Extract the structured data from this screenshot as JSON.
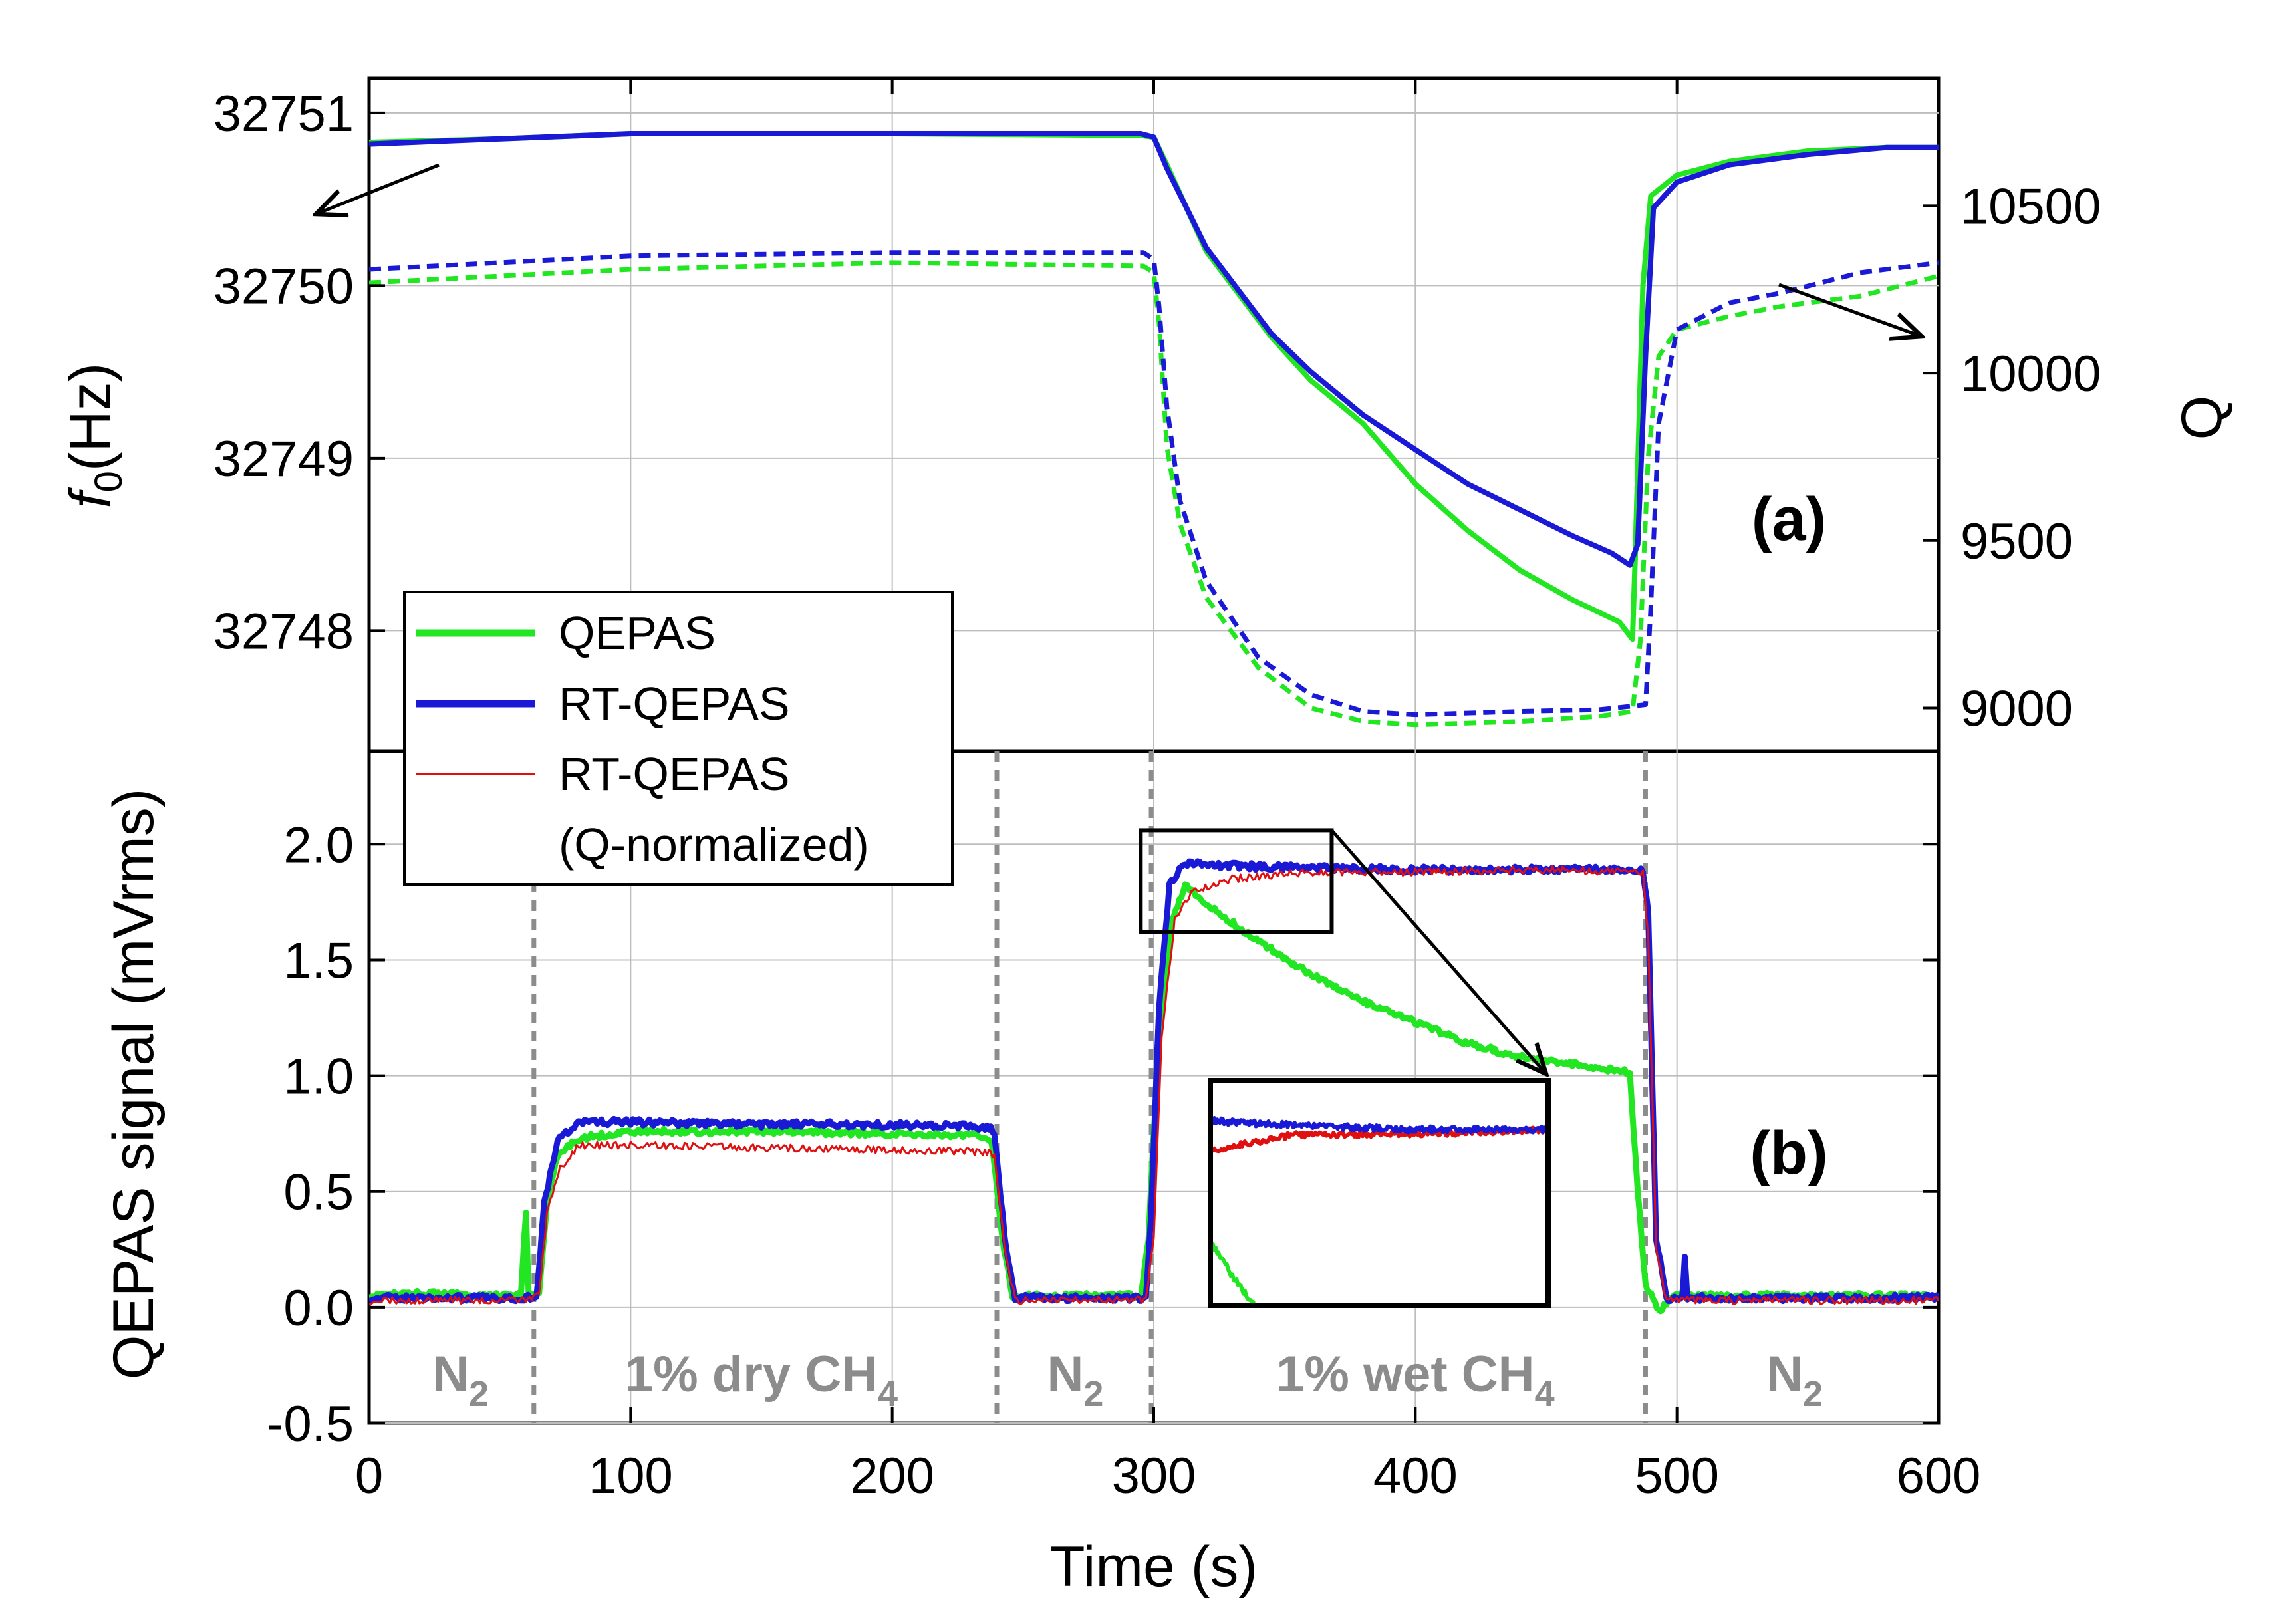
{
  "chart_data": {
    "type": "line",
    "colors": {
      "qepas": "#22e622",
      "rt_qepas": "#1a1ad6",
      "rt_qepas_qnorm": "#e01010",
      "phase_marker": "#8c8c8c"
    },
    "x": {
      "label": "Time (s)",
      "range": [
        0,
        600
      ],
      "ticks": [
        "0",
        "100",
        "200",
        "300",
        "400",
        "500",
        "600"
      ]
    },
    "panel_a": {
      "label": "(a)",
      "left_axis": {
        "label_main": "f",
        "label_sub": "0",
        "label_unit": "(Hz)",
        "range": [
          32747.3,
          32751.2
        ],
        "ticks": [
          "32748",
          "32749",
          "32750",
          "32751"
        ]
      },
      "right_axis": {
        "label": "Q",
        "range": [
          8870,
          10880
        ],
        "ticks": [
          "9000",
          "9500",
          "10000",
          "10500"
        ]
      },
      "series": [
        {
          "name": "QEPAS f0",
          "axis": "left",
          "style": "solid",
          "color_key": "qepas",
          "points": [
            [
              0,
              32750.83
            ],
            [
              50,
              32750.85
            ],
            [
              100,
              32750.88
            ],
            [
              200,
              32750.88
            ],
            [
              295,
              32750.87
            ],
            [
              300,
              32750.86
            ],
            [
              305,
              32750.7
            ],
            [
              320,
              32750.2
            ],
            [
              345,
              32749.7
            ],
            [
              360,
              32749.45
            ],
            [
              380,
              32749.2
            ],
            [
              400,
              32748.85
            ],
            [
              420,
              32748.58
            ],
            [
              440,
              32748.35
            ],
            [
              460,
              32748.18
            ],
            [
              478,
              32748.05
            ],
            [
              483,
              32747.95
            ],
            [
              484,
              32748.4
            ],
            [
              487,
              32750.0
            ],
            [
              490,
              32750.52
            ],
            [
              500,
              32750.64
            ],
            [
              520,
              32750.72
            ],
            [
              550,
              32750.78
            ],
            [
              580,
              32750.8
            ],
            [
              600,
              32750.8
            ]
          ]
        },
        {
          "name": "RT-QEPAS f0",
          "axis": "left",
          "style": "solid",
          "color_key": "rt_qepas",
          "points": [
            [
              0,
              32750.82
            ],
            [
              50,
              32750.85
            ],
            [
              100,
              32750.88
            ],
            [
              200,
              32750.88
            ],
            [
              295,
              32750.88
            ],
            [
              300,
              32750.86
            ],
            [
              305,
              32750.68
            ],
            [
              320,
              32750.22
            ],
            [
              345,
              32749.72
            ],
            [
              360,
              32749.5
            ],
            [
              380,
              32749.25
            ],
            [
              400,
              32749.05
            ],
            [
              420,
              32748.85
            ],
            [
              440,
              32748.7
            ],
            [
              460,
              32748.55
            ],
            [
              475,
              32748.45
            ],
            [
              482,
              32748.38
            ],
            [
              485,
              32748.5
            ],
            [
              488,
              32749.6
            ],
            [
              491,
              32750.45
            ],
            [
              500,
              32750.6
            ],
            [
              520,
              32750.7
            ],
            [
              550,
              32750.76
            ],
            [
              580,
              32750.8
            ],
            [
              600,
              32750.8
            ]
          ]
        },
        {
          "name": "QEPAS Q",
          "axis": "right",
          "style": "dashed",
          "color_key": "qepas",
          "points": [
            [
              0,
              10270
            ],
            [
              50,
              10290
            ],
            [
              100,
              10310
            ],
            [
              200,
              10330
            ],
            [
              296,
              10320
            ],
            [
              300,
              10300
            ],
            [
              302,
              10150
            ],
            [
              305,
              9780
            ],
            [
              310,
              9550
            ],
            [
              320,
              9330
            ],
            [
              340,
              9120
            ],
            [
              360,
              9000
            ],
            [
              380,
              8960
            ],
            [
              400,
              8950
            ],
            [
              440,
              8960
            ],
            [
              470,
              8975
            ],
            [
              483,
              8990
            ],
            [
              486,
              9200
            ],
            [
              489,
              9750
            ],
            [
              493,
              10050
            ],
            [
              500,
              10130
            ],
            [
              520,
              10170
            ],
            [
              540,
              10200
            ],
            [
              570,
              10230
            ],
            [
              590,
              10270
            ],
            [
              600,
              10290
            ]
          ]
        },
        {
          "name": "RT-QEPAS Q",
          "axis": "right",
          "style": "dashed",
          "color_key": "rt_qepas",
          "points": [
            [
              0,
              10310
            ],
            [
              50,
              10330
            ],
            [
              100,
              10350
            ],
            [
              200,
              10360
            ],
            [
              296,
              10360
            ],
            [
              300,
              10340
            ],
            [
              302,
              10200
            ],
            [
              305,
              9900
            ],
            [
              310,
              9620
            ],
            [
              320,
              9380
            ],
            [
              340,
              9150
            ],
            [
              360,
              9040
            ],
            [
              380,
              8990
            ],
            [
              400,
              8980
            ],
            [
              440,
              8990
            ],
            [
              470,
              8995
            ],
            [
              488,
              9010
            ],
            [
              490,
              9300
            ],
            [
              493,
              9850
            ],
            [
              500,
              10130
            ],
            [
              520,
              10210
            ],
            [
              540,
              10240
            ],
            [
              570,
              10300
            ],
            [
              590,
              10320
            ],
            [
              600,
              10330
            ]
          ]
        }
      ]
    },
    "panel_b": {
      "label": "(b)",
      "y_axis": {
        "label": "QEPAS signal (mVrms)",
        "range": [
          -0.5,
          2.4
        ],
        "ticks": [
          "-0.5",
          "0.0",
          "0.5",
          "1.0",
          "1.5",
          "2.0"
        ]
      },
      "series": [
        {
          "name": "QEPAS",
          "style": "solid",
          "color_key": "qepas",
          "points": [
            [
              0,
              0.05
            ],
            [
              20,
              0.06
            ],
            [
              40,
              0.05
            ],
            [
              58,
              0.05
            ],
            [
              60,
              0.42
            ],
            [
              61,
              0.05
            ],
            [
              65,
              0.06
            ],
            [
              68,
              0.45
            ],
            [
              72,
              0.65
            ],
            [
              80,
              0.73
            ],
            [
              100,
              0.76
            ],
            [
              150,
              0.76
            ],
            [
              200,
              0.75
            ],
            [
              235,
              0.74
            ],
            [
              238,
              0.72
            ],
            [
              242,
              0.3
            ],
            [
              246,
              0.05
            ],
            [
              260,
              0.05
            ],
            [
              295,
              0.05
            ],
            [
              298,
              0.3
            ],
            [
              302,
              1.2
            ],
            [
              307,
              1.68
            ],
            [
              312,
              1.82
            ],
            [
              320,
              1.74
            ],
            [
              340,
              1.58
            ],
            [
              360,
              1.44
            ],
            [
              380,
              1.32
            ],
            [
              400,
              1.23
            ],
            [
              420,
              1.14
            ],
            [
              440,
              1.08
            ],
            [
              460,
              1.05
            ],
            [
              480,
              1.02
            ],
            [
              482,
              1.0
            ],
            [
              485,
              0.5
            ],
            [
              488,
              0.1
            ],
            [
              493,
              -0.02
            ],
            [
              498,
              0.05
            ],
            [
              520,
              0.05
            ],
            [
              560,
              0.05
            ],
            [
              600,
              0.05
            ]
          ]
        },
        {
          "name": "RT-QEPAS",
          "style": "solid",
          "color_key": "rt_qepas",
          "points": [
            [
              0,
              0.04
            ],
            [
              30,
              0.04
            ],
            [
              60,
              0.04
            ],
            [
              64,
              0.05
            ],
            [
              67,
              0.45
            ],
            [
              72,
              0.72
            ],
            [
              80,
              0.8
            ],
            [
              100,
              0.8
            ],
            [
              150,
              0.79
            ],
            [
              200,
              0.79
            ],
            [
              237,
              0.78
            ],
            [
              239,
              0.75
            ],
            [
              243,
              0.3
            ],
            [
              247,
              0.04
            ],
            [
              270,
              0.04
            ],
            [
              297,
              0.04
            ],
            [
              299,
              0.4
            ],
            [
              302,
              1.3
            ],
            [
              306,
              1.83
            ],
            [
              312,
              1.92
            ],
            [
              320,
              1.91
            ],
            [
              350,
              1.9
            ],
            [
              400,
              1.89
            ],
            [
              450,
              1.89
            ],
            [
              487,
              1.89
            ],
            [
              489,
              1.7
            ],
            [
              492,
              0.3
            ],
            [
              496,
              0.04
            ],
            [
              502,
              0.04
            ],
            [
              503,
              0.22
            ],
            [
              504,
              0.04
            ],
            [
              550,
              0.04
            ],
            [
              600,
              0.04
            ]
          ]
        },
        {
          "name": "RT-QEPAS (Q-normalized)",
          "style": "thin",
          "color_key": "rt_qepas_qnorm",
          "points": [
            [
              0,
              0.03
            ],
            [
              60,
              0.03
            ],
            [
              65,
              0.05
            ],
            [
              68,
              0.4
            ],
            [
              73,
              0.6
            ],
            [
              80,
              0.7
            ],
            [
              100,
              0.7
            ],
            [
              150,
              0.69
            ],
            [
              200,
              0.68
            ],
            [
              237,
              0.67
            ],
            [
              239,
              0.65
            ],
            [
              243,
              0.25
            ],
            [
              247,
              0.03
            ],
            [
              297,
              0.03
            ],
            [
              300,
              0.3
            ],
            [
              303,
              1.15
            ],
            [
              308,
              1.68
            ],
            [
              315,
              1.8
            ],
            [
              330,
              1.85
            ],
            [
              360,
              1.88
            ],
            [
              400,
              1.88
            ],
            [
              450,
              1.89
            ],
            [
              487,
              1.88
            ],
            [
              489,
              1.6
            ],
            [
              492,
              0.25
            ],
            [
              496,
              0.03
            ],
            [
              550,
              0.03
            ],
            [
              600,
              0.03
            ]
          ]
        }
      ],
      "phase_markers": [
        63,
        240,
        299,
        488
      ],
      "regions": [
        {
          "name": "N",
          "sub": "2",
          "x_center": 35
        },
        {
          "name": "1% dry CH",
          "sub": "4",
          "x_center": 150
        },
        {
          "name": "N",
          "sub": "2",
          "x_center": 270
        },
        {
          "name": "1% wet CH",
          "sub": "4",
          "x_center": 400
        },
        {
          "name": "N",
          "sub": "2",
          "x_center": 545
        }
      ],
      "zoom_box": {
        "x_range": [
          295,
          368
        ],
        "y_range": [
          1.62,
          2.06
        ]
      },
      "inset": {
        "x_range": [
          330,
          450
        ],
        "y_range": [
          1.55,
          1.98
        ]
      }
    },
    "legend": {
      "entries": [
        {
          "label": "QEPAS",
          "color_key": "qepas",
          "style": "thick"
        },
        {
          "label": "RT-QEPAS",
          "color_key": "rt_qepas",
          "style": "thick"
        },
        {
          "label": "RT-QEPAS",
          "color_key": "rt_qepas_qnorm",
          "style": "thin"
        }
      ],
      "extra_line": "(Q-normalized)"
    }
  }
}
